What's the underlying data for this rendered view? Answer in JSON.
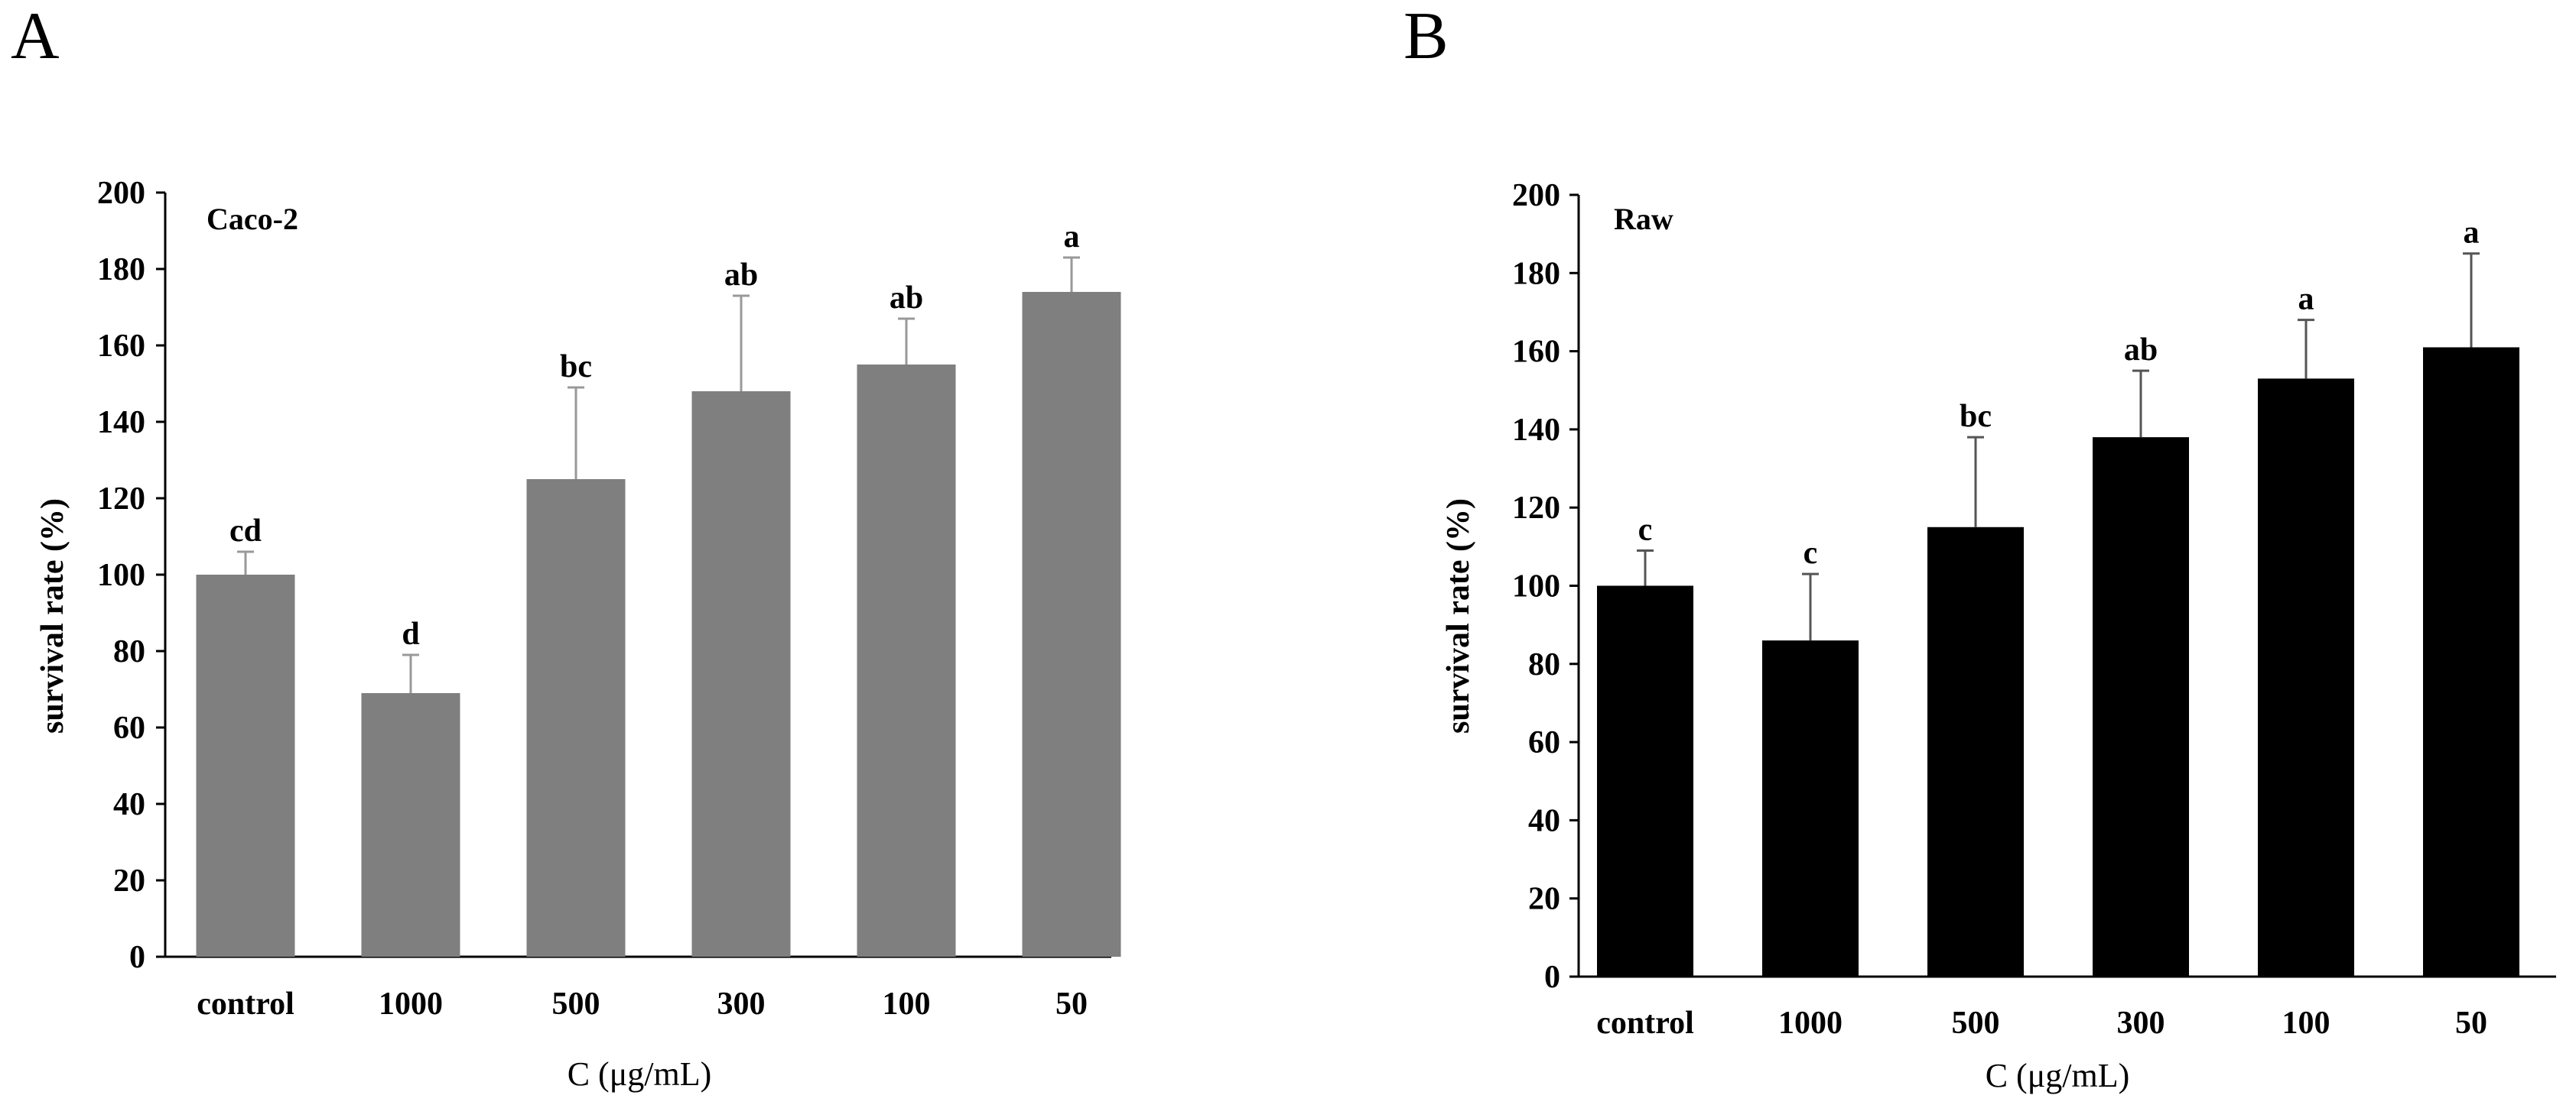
{
  "chart_data": [
    {
      "panel": "A",
      "type": "bar",
      "title": "Caco-2",
      "xlabel": "C (μg/mL)",
      "ylabel": "survival rate (%)",
      "ylim": [
        0,
        200
      ],
      "yticks": [
        0,
        20,
        40,
        60,
        80,
        100,
        120,
        140,
        160,
        180,
        200
      ],
      "categories": [
        "control",
        "1000",
        "500",
        "300",
        "100",
        "50"
      ],
      "values": [
        100,
        69,
        125,
        148,
        155,
        174
      ],
      "errors": [
        6,
        10,
        24,
        25,
        12,
        9
      ],
      "significance": [
        "cd",
        "d",
        "bc",
        "ab",
        "ab",
        "a"
      ],
      "bar_color": "#7f7f7f",
      "error_color": "#999999"
    },
    {
      "panel": "B",
      "type": "bar",
      "title": "Raw",
      "xlabel": "C (μg/mL)",
      "ylabel": "survival rate (%)",
      "ylim": [
        0,
        200
      ],
      "yticks": [
        0,
        20,
        40,
        60,
        80,
        100,
        120,
        140,
        160,
        180,
        200
      ],
      "categories": [
        "control",
        "1000",
        "500",
        "300",
        "100",
        "50"
      ],
      "values": [
        100,
        86,
        115,
        138,
        153,
        161
      ],
      "errors": [
        9,
        17,
        23,
        17,
        15,
        24
      ],
      "significance": [
        "c",
        "c",
        "bc",
        "ab",
        "a",
        "a"
      ],
      "bar_color": "#000000",
      "error_color": "#555555"
    }
  ]
}
